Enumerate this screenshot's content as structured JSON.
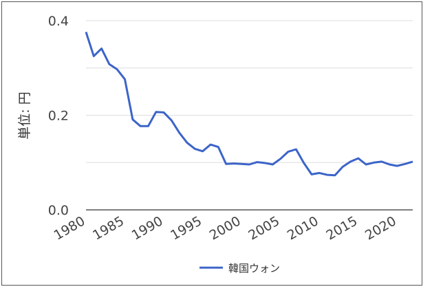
{
  "chart_data": {
    "type": "line",
    "title": "",
    "xlabel": "",
    "ylabel": "単位: 円",
    "xlim": [
      1980,
      2022
    ],
    "ylim": [
      0,
      0.4
    ],
    "y_ticks": [
      "0.0",
      "0.2",
      "0.4"
    ],
    "x_ticks": [
      "1980",
      "1985",
      "1990",
      "1995",
      "2000",
      "2005",
      "2010",
      "2015",
      "2020"
    ],
    "grid": true,
    "legend_position": "bottom",
    "x": [
      1980,
      1981,
      1982,
      1983,
      1984,
      1985,
      1986,
      1987,
      1988,
      1989,
      1990,
      1991,
      1992,
      1993,
      1994,
      1995,
      1996,
      1997,
      1998,
      1999,
      2000,
      2001,
      2002,
      2003,
      2004,
      2005,
      2006,
      2007,
      2008,
      2009,
      2010,
      2011,
      2012,
      2013,
      2014,
      2015,
      2016,
      2017,
      2018,
      2019,
      2020,
      2021,
      2022
    ],
    "series": [
      {
        "name": "韓国ウォン",
        "color": "#3c64c8",
        "values": [
          0.376,
          0.325,
          0.341,
          0.308,
          0.297,
          0.276,
          0.191,
          0.177,
          0.177,
          0.207,
          0.206,
          0.189,
          0.163,
          0.142,
          0.129,
          0.124,
          0.138,
          0.133,
          0.097,
          0.098,
          0.097,
          0.096,
          0.101,
          0.099,
          0.096,
          0.108,
          0.123,
          0.128,
          0.099,
          0.075,
          0.078,
          0.074,
          0.073,
          0.091,
          0.102,
          0.109,
          0.096,
          0.1,
          0.102,
          0.096,
          0.093,
          0.097,
          0.102
        ]
      }
    ]
  }
}
